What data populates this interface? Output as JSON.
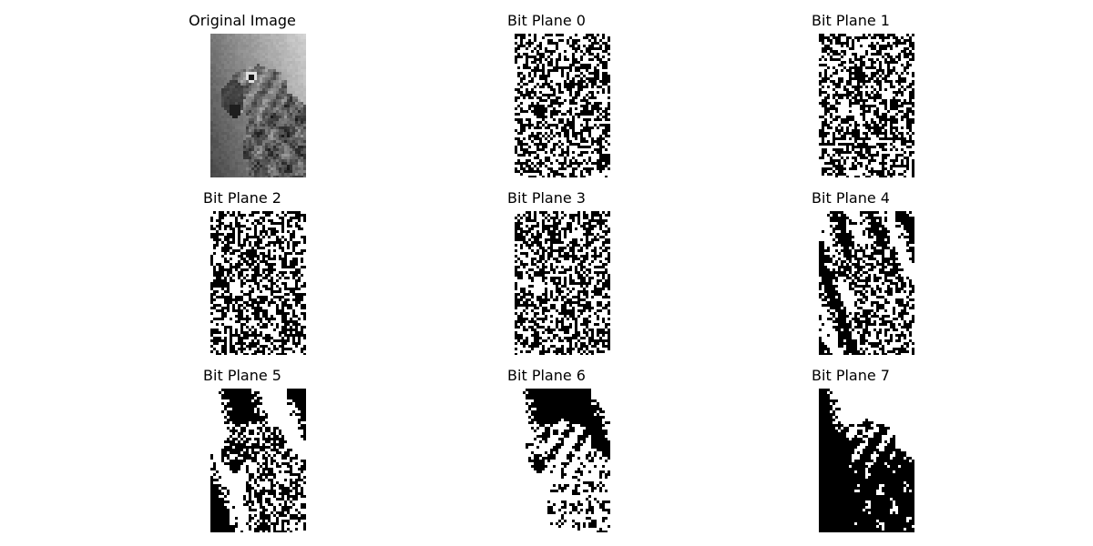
{
  "figure": {
    "panels": [
      {
        "title": "Original Image",
        "kind": "original",
        "bit": null
      },
      {
        "title": "Bit Plane 0",
        "kind": "bitplane",
        "bit": 0
      },
      {
        "title": "Bit Plane 1",
        "kind": "bitplane",
        "bit": 1
      },
      {
        "title": "Bit Plane 2",
        "kind": "bitplane",
        "bit": 2
      },
      {
        "title": "Bit Plane 3",
        "kind": "bitplane",
        "bit": 3
      },
      {
        "title": "Bit Plane 4",
        "kind": "bitplane",
        "bit": 4
      },
      {
        "title": "Bit Plane 5",
        "kind": "bitplane",
        "bit": 5
      },
      {
        "title": "Bit Plane 6",
        "kind": "bitplane",
        "bit": 6
      },
      {
        "title": "Bit Plane 7",
        "kind": "bitplane",
        "bit": 7
      }
    ],
    "colors": {
      "background": "#ffffff",
      "on_pixel": "#ffffff",
      "off_pixel": "#000000"
    }
  }
}
